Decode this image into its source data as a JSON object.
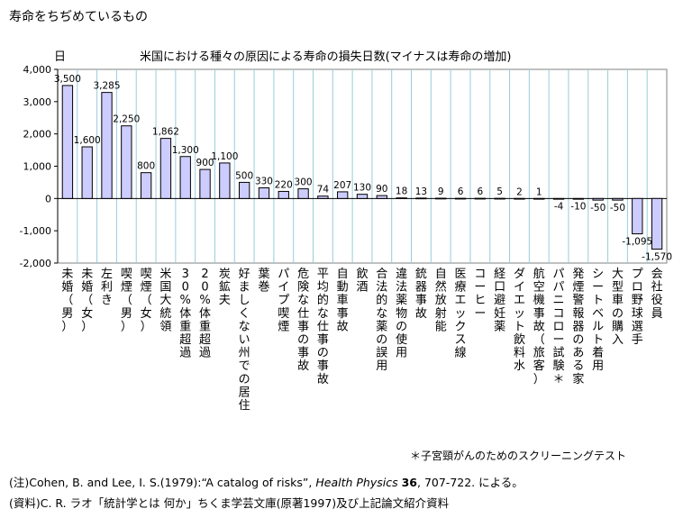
{
  "page_title": "寿命をちぢめているもの",
  "chart_data": {
    "type": "bar",
    "title": "米国における種々の原因による寿命の損失日数(マイナスは寿命の増加)",
    "ylabel": "日",
    "xlabel": "",
    "ylim": [
      -2000,
      4000
    ],
    "yticks": [
      -2000,
      -1000,
      0,
      1000,
      2000,
      3000,
      4000
    ],
    "ytick_labels": [
      "-2,000",
      "-1,000",
      "0",
      "1,000",
      "2,000",
      "3,000",
      "4,000"
    ],
    "grid": true,
    "categories": [
      "未婚（男）",
      "未婚（女）",
      "左利き",
      "喫煙（男）",
      "喫煙（女）",
      "米国大統領",
      "30%体重超過",
      "20%体重超過",
      "炭鉱夫",
      "好ましくない州での居住",
      "葉巻",
      "パイプ喫煙",
      "危険な仕事の事故",
      "平均的な仕事の事故",
      "自動車事故",
      "飲酒",
      "合法的な薬の誤用",
      "違法薬物の使用",
      "銃器事故",
      "自然放射能",
      "医療エックス線",
      "コーヒー",
      "経口避妊薬",
      "ダイエット飲料水",
      "航空機事故（旅客）",
      "パパニコロー試験＊",
      "発煙警報器のある家",
      "シートベルト着用",
      "大型車の購入",
      "プロ野球選手",
      "会社役員"
    ],
    "values": [
      3500,
      1600,
      3285,
      2250,
      800,
      1862,
      1300,
      900,
      1100,
      500,
      330,
      220,
      300,
      74,
      207,
      130,
      90,
      18,
      13,
      9,
      6,
      6,
      5,
      2,
      1,
      -4,
      -10,
      -50,
      -50,
      -1095,
      -1570
    ],
    "value_labels": [
      "3,500",
      "1,600",
      "3,285",
      "2,250",
      "800",
      "1,862",
      "1,300",
      "900",
      "1,100",
      "500",
      "330",
      "220",
      "300",
      "74",
      "207",
      "130",
      "90",
      "18",
      "13",
      "9",
      "6",
      "6",
      "5",
      "2",
      "1",
      "-4",
      "-10",
      "-50",
      "-50",
      "-1,095",
      "-1,570"
    ],
    "bar_color": "#ccccff",
    "grid_color": "#99ccdd"
  },
  "footnote": "＊子宮頸がんのためのスクリーニングテスト",
  "note": {
    "prefix": "(注)Cohen, B. and Lee, I. S.(1979):“A catalog of risks”, ",
    "journal": "Health Physics",
    "volume": "36",
    "suffix": ", 707-722. による。"
  },
  "source": "(資料)C. R. ラオ「統計学とは 何か」ちくま学芸文庫(原著1997)及び上記論文紹介資料"
}
